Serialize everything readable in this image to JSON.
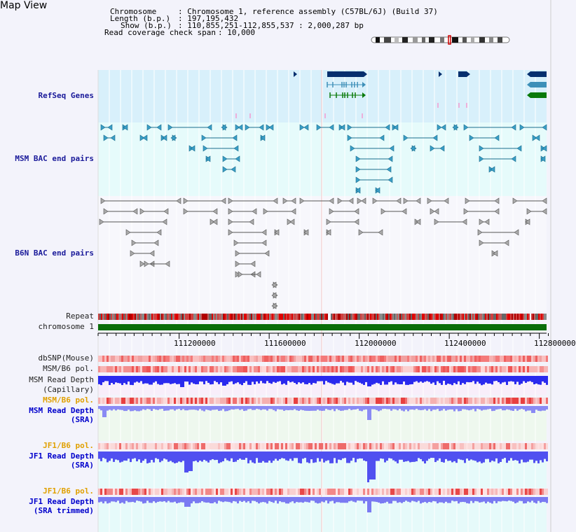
{
  "page": {
    "title": "Map View",
    "info": {
      "chromosome_key": "Chromosome",
      "chromosome_val": ": Chromosome 1, reference assembly (C57BL/6J) (Build 37)",
      "length_key": "Length (b.p.)",
      "length_val": ": 197,195,432",
      "show_key": "Show (b.p.)",
      "show_val": ": 110,855,251-112,855,537 : 2,000,287 bp",
      "coverage_key": "Read coverage check span",
      "coverage_val": ": 10,000"
    }
  },
  "tracks": {
    "refseq": "RefSeq Genes",
    "msm_bac": "MSM BAC end pairs",
    "b6n_bac": "B6N BAC end pairs",
    "repeat": "Repeat",
    "chromosome": "chromosome 1",
    "dbsnp": "dbSNP(Mouse)",
    "msm_b6_pol_1": "MSM/B6 pol.",
    "msm_depth_cap_1": "MSM Read Depth",
    "msm_depth_cap_2": "(Capillary)",
    "msm_b6_pol_2": "MSM/B6 pol.",
    "msm_depth_sra_1": "MSM Read Depth",
    "msm_depth_sra_2": "(SRA)",
    "jf1_b6_pol_1": "JF1/B6 pol.",
    "jf1_depth_sra_1": "JF1 Read Depth",
    "jf1_depth_sra_2": "(SRA)",
    "jf1_b6_pol_2": "JF1/B6 pol.",
    "jf1_depth_trim_1": "JF1 Read Depth",
    "jf1_depth_trim_2": "(SRA trimmed)"
  },
  "axis": {
    "ticks": [
      "111200000",
      "111600000",
      "112000000",
      "112400000",
      "112800000"
    ]
  },
  "colors": {
    "refseq_bg": "#d8f0fb",
    "bac_bg": "#e6fbfb",
    "gene_navy": "#062f6e",
    "gene_teal": "#3d8fb8",
    "gene_green": "#0a7a0a",
    "chromosome_green": "#0a6e0a",
    "depth_blue": "#2a2aee"
  }
}
